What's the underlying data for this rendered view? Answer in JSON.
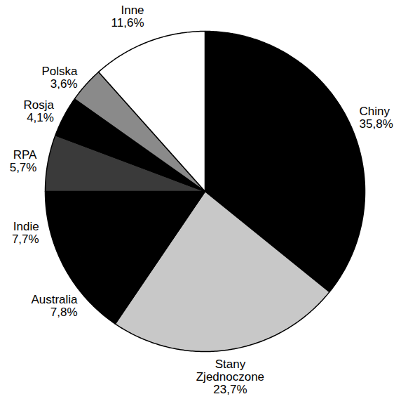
{
  "chart_data": {
    "type": "pie",
    "categories": [
      "Chiny",
      "Stany Zjednoczone",
      "Australia",
      "Indie",
      "RPA",
      "Rosja",
      "Polska",
      "Inne"
    ],
    "values": [
      35.8,
      23.7,
      7.8,
      7.7,
      5.7,
      4.1,
      3.6,
      11.6
    ],
    "value_labels": [
      "35,8%",
      "23,7%",
      "7,8%",
      "7,7%",
      "5,7%",
      "4,1%",
      "3,6%",
      "11,6%"
    ],
    "colors": [
      "#000000",
      "#c8c8c8",
      "#000000",
      "#000000",
      "#3a3a3a",
      "#000000",
      "#8a8a8a",
      "#ffffff"
    ],
    "data_labels": true
  }
}
